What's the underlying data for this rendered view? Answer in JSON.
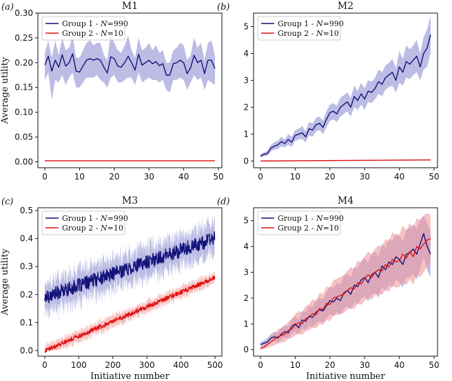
{
  "colors": {
    "group1": "#12127a",
    "group1_band": "#8f8fd3",
    "group2": "#e01010",
    "group2_band": "#f29a9a"
  },
  "chart_data": [
    {
      "id": "a",
      "panel_label": "(a)",
      "type": "line",
      "title": "M1",
      "xlabel": "",
      "ylabel": "Average utility",
      "xlim": [
        -2,
        51
      ],
      "ylim": [
        -0.012,
        0.3
      ],
      "xticks": [
        0,
        10,
        20,
        30,
        40,
        50
      ],
      "xtick_labels": [
        "0",
        "10",
        "20",
        "30",
        "40",
        "50"
      ],
      "yticks": [
        0,
        0.05,
        0.1,
        0.15,
        0.2,
        0.25,
        0.3
      ],
      "ytick_labels": [
        "0.00",
        "0.05",
        "0.10",
        "0.15",
        "0.20",
        "0.25",
        "0.30"
      ],
      "legend": "upper-left",
      "series": [
        {
          "name": "Group 1 - N=990",
          "legend_label": "Group 1 - 𝑁=990",
          "color": "#12127a",
          "band": "#8f8fd3",
          "x": [
            0,
            1,
            2,
            3,
            4,
            5,
            6,
            7,
            8,
            9,
            10,
            11,
            12,
            13,
            14,
            15,
            16,
            17,
            18,
            19,
            20,
            21,
            22,
            23,
            24,
            25,
            26,
            27,
            28,
            29,
            30,
            31,
            32,
            33,
            34,
            35,
            36,
            37,
            38,
            39,
            40,
            41,
            42,
            43,
            44,
            45,
            46,
            47,
            48,
            49
          ],
          "values": [
            0.195,
            0.213,
            0.183,
            0.205,
            0.191,
            0.216,
            0.193,
            0.2,
            0.218,
            0.183,
            0.181,
            0.193,
            0.205,
            0.208,
            0.205,
            0.208,
            0.205,
            0.191,
            0.179,
            0.212,
            0.208,
            0.193,
            0.191,
            0.2,
            0.213,
            0.2,
            0.185,
            0.217,
            0.195,
            0.2,
            0.205,
            0.198,
            0.202,
            0.194,
            0.198,
            0.175,
            0.175,
            0.198,
            0.2,
            0.205,
            0.2,
            0.178,
            0.19,
            0.215,
            0.2,
            0.205,
            0.178,
            0.205,
            0.205,
            0.188
          ],
          "upper": [
            0.22,
            0.245,
            0.21,
            0.245,
            0.215,
            0.25,
            0.225,
            0.23,
            0.255,
            0.21,
            0.21,
            0.225,
            0.24,
            0.245,
            0.235,
            0.24,
            0.24,
            0.215,
            0.205,
            0.26,
            0.24,
            0.225,
            0.22,
            0.235,
            0.255,
            0.225,
            0.21,
            0.25,
            0.225,
            0.23,
            0.24,
            0.225,
            0.235,
            0.22,
            0.225,
            0.2,
            0.2,
            0.225,
            0.23,
            0.24,
            0.235,
            0.205,
            0.215,
            0.25,
            0.23,
            0.24,
            0.205,
            0.24,
            0.245,
            0.215
          ],
          "lower": [
            0.165,
            0.18,
            0.125,
            0.165,
            0.16,
            0.175,
            0.155,
            0.17,
            0.18,
            0.15,
            0.15,
            0.16,
            0.17,
            0.17,
            0.17,
            0.175,
            0.165,
            0.16,
            0.15,
            0.17,
            0.175,
            0.16,
            0.16,
            0.165,
            0.17,
            0.17,
            0.155,
            0.18,
            0.16,
            0.165,
            0.17,
            0.165,
            0.165,
            0.16,
            0.165,
            0.145,
            0.14,
            0.165,
            0.165,
            0.17,
            0.165,
            0.145,
            0.16,
            0.175,
            0.165,
            0.17,
            0.145,
            0.165,
            0.16,
            0.155
          ]
        },
        {
          "name": "Group 2 - N=10",
          "legend_label": "Group 2 - 𝑁=10",
          "color": "#e01010",
          "band": "#f29a9a",
          "x": [
            0,
            49
          ],
          "values": [
            0.002,
            0.002
          ],
          "upper": [
            0.003,
            0.003
          ],
          "lower": [
            0.001,
            0.001
          ]
        }
      ]
    },
    {
      "id": "b",
      "panel_label": "(b)",
      "type": "line",
      "title": "M2",
      "xlabel": "",
      "ylabel": "",
      "xlim": [
        -2,
        51
      ],
      "ylim": [
        -0.25,
        5.5
      ],
      "xticks": [
        0,
        10,
        20,
        30,
        40,
        50
      ],
      "xtick_labels": [
        "0",
        "10",
        "20",
        "30",
        "40",
        "50"
      ],
      "yticks": [
        0,
        1,
        2,
        3,
        4,
        5
      ],
      "ytick_labels": [
        "0",
        "1",
        "2",
        "3",
        "4",
        "5"
      ],
      "legend": "upper-left",
      "series": [
        {
          "name": "Group 1 - N=990",
          "legend_label": "Group 1 - 𝑁=990",
          "color": "#12127a",
          "band": "#8f8fd3",
          "x": [
            0,
            1,
            2,
            3,
            4,
            5,
            6,
            7,
            8,
            9,
            10,
            11,
            12,
            13,
            14,
            15,
            16,
            17,
            18,
            19,
            20,
            21,
            22,
            23,
            24,
            25,
            26,
            27,
            28,
            29,
            30,
            31,
            32,
            33,
            34,
            35,
            36,
            37,
            38,
            39,
            40,
            41,
            42,
            43,
            44,
            45,
            46,
            47,
            48,
            49
          ],
          "values": [
            0.18,
            0.25,
            0.28,
            0.48,
            0.55,
            0.6,
            0.72,
            0.65,
            0.8,
            0.7,
            0.95,
            1.0,
            1.05,
            0.9,
            1.2,
            1.15,
            1.35,
            1.4,
            1.25,
            1.55,
            1.8,
            1.85,
            1.75,
            2.0,
            2.1,
            2.2,
            2.0,
            2.4,
            2.25,
            2.5,
            2.3,
            2.6,
            2.55,
            2.7,
            2.95,
            2.85,
            3.1,
            3.2,
            3.3,
            3.0,
            3.5,
            3.3,
            3.7,
            3.6,
            3.75,
            3.9,
            3.5,
            4.0,
            4.2,
            4.7
          ],
          "upper": [
            0.25,
            0.32,
            0.38,
            0.6,
            0.7,
            0.75,
            0.9,
            0.8,
            1.0,
            0.9,
            1.15,
            1.2,
            1.3,
            1.1,
            1.45,
            1.4,
            1.6,
            1.65,
            1.5,
            1.85,
            2.1,
            2.15,
            2.05,
            2.35,
            2.45,
            2.55,
            2.35,
            2.8,
            2.6,
            2.9,
            2.7,
            3.0,
            2.95,
            3.1,
            3.4,
            3.3,
            3.55,
            3.65,
            3.8,
            3.45,
            4.1,
            3.8,
            4.3,
            4.15,
            4.3,
            4.5,
            4.0,
            4.6,
            4.9,
            5.4
          ],
          "lower": [
            0.12,
            0.18,
            0.2,
            0.36,
            0.42,
            0.45,
            0.55,
            0.5,
            0.6,
            0.52,
            0.75,
            0.8,
            0.82,
            0.7,
            0.95,
            0.9,
            1.1,
            1.15,
            1.0,
            1.25,
            1.5,
            1.55,
            1.45,
            1.65,
            1.75,
            1.85,
            1.65,
            2.0,
            1.9,
            2.1,
            1.9,
            2.2,
            2.15,
            2.3,
            2.5,
            2.4,
            2.65,
            2.75,
            2.8,
            2.55,
            2.9,
            2.8,
            3.1,
            3.05,
            3.2,
            3.3,
            3.0,
            3.4,
            3.5,
            4.0
          ]
        },
        {
          "name": "Group 2 - N=10",
          "legend_label": "Group 2 - 𝑁=10",
          "color": "#e01010",
          "band": "#f29a9a",
          "x": [
            0,
            49
          ],
          "values": [
            0.0,
            0.04
          ],
          "upper": [
            0.01,
            0.06
          ],
          "lower": [
            0.0,
            0.02
          ]
        }
      ]
    },
    {
      "id": "c",
      "panel_label": "(c)",
      "type": "line",
      "title": "M3",
      "xlabel": "Initiative number",
      "ylabel": "Average utility",
      "xlim": [
        -20,
        520
      ],
      "ylim": [
        -0.02,
        0.51
      ],
      "xticks": [
        0,
        100,
        200,
        300,
        400,
        500
      ],
      "xtick_labels": [
        "0",
        "100",
        "200",
        "300",
        "400",
        "500"
      ],
      "yticks": [
        0,
        0.1,
        0.2,
        0.3,
        0.4,
        0.5
      ],
      "ytick_labels": [
        "0.0",
        "0.1",
        "0.2",
        "0.3",
        "0.4",
        "0.5"
      ],
      "legend": "upper-left",
      "series": [
        {
          "name": "Group 1 - N=990",
          "legend_label": "Group 1 - 𝑁=990",
          "color": "#12127a",
          "band": "#8f8fd3",
          "noisy": true,
          "n": 500,
          "start": 0.19,
          "end": 0.4,
          "noise": 0.025,
          "band_width": 0.055
        },
        {
          "name": "Group 2 - N=10",
          "legend_label": "Group 2 - 𝑁=10",
          "color": "#e01010",
          "band": "#f29a9a",
          "noisy": true,
          "n": 500,
          "start": 0.0,
          "end": 0.26,
          "noise": 0.008,
          "band_width": 0.02
        }
      ]
    },
    {
      "id": "d",
      "panel_label": "(d)",
      "type": "line",
      "title": "M4",
      "xlabel": "Initiative number",
      "ylabel": "",
      "xlim": [
        -2,
        51
      ],
      "ylim": [
        -0.25,
        5.5
      ],
      "xticks": [
        0,
        10,
        20,
        30,
        40,
        50
      ],
      "xtick_labels": [
        "0",
        "10",
        "20",
        "30",
        "40",
        "50"
      ],
      "yticks": [
        0,
        1,
        2,
        3,
        4,
        5
      ],
      "ytick_labels": [
        "0",
        "1",
        "2",
        "3",
        "4",
        "5"
      ],
      "legend": "upper-left",
      "series": [
        {
          "name": "Group 1 - N=990",
          "legend_label": "Group 1 - 𝑁=990",
          "color": "#12127a",
          "band": "#8f8fd3",
          "x": [
            0,
            1,
            2,
            3,
            4,
            5,
            6,
            7,
            8,
            9,
            10,
            11,
            12,
            13,
            14,
            15,
            16,
            17,
            18,
            19,
            20,
            21,
            22,
            23,
            24,
            25,
            26,
            27,
            28,
            29,
            30,
            31,
            32,
            33,
            34,
            35,
            36,
            37,
            38,
            39,
            40,
            41,
            42,
            43,
            44,
            45,
            46,
            47,
            48,
            49
          ],
          "values": [
            0.2,
            0.25,
            0.3,
            0.45,
            0.5,
            0.45,
            0.6,
            0.7,
            0.65,
            0.9,
            1.0,
            0.85,
            1.15,
            1.1,
            1.3,
            1.25,
            1.45,
            1.55,
            1.5,
            1.7,
            1.9,
            1.85,
            2.0,
            1.9,
            2.2,
            2.3,
            2.15,
            2.5,
            2.45,
            2.7,
            2.8,
            2.6,
            2.9,
            3.0,
            2.8,
            3.25,
            3.1,
            3.4,
            3.3,
            3.6,
            3.5,
            3.3,
            3.7,
            3.75,
            3.9,
            3.7,
            4.1,
            4.5,
            4.0,
            3.7
          ],
          "upper": [
            0.3,
            0.35,
            0.45,
            0.6,
            0.7,
            0.65,
            0.85,
            0.95,
            0.9,
            1.2,
            1.3,
            1.15,
            1.5,
            1.45,
            1.7,
            1.65,
            1.9,
            2.0,
            1.95,
            2.2,
            2.45,
            2.4,
            2.6,
            2.5,
            2.85,
            2.95,
            2.8,
            3.2,
            3.15,
            3.45,
            3.55,
            3.35,
            3.7,
            3.8,
            3.6,
            4.1,
            3.95,
            4.3,
            4.2,
            4.5,
            4.4,
            4.2,
            4.65,
            4.7,
            4.85,
            4.7,
            5.05,
            5.2,
            4.9,
            4.6
          ],
          "lower": [
            0.1,
            0.15,
            0.18,
            0.3,
            0.32,
            0.28,
            0.4,
            0.48,
            0.42,
            0.62,
            0.7,
            0.58,
            0.82,
            0.78,
            0.92,
            0.88,
            1.02,
            1.1,
            1.05,
            1.22,
            1.38,
            1.32,
            1.45,
            1.35,
            1.6,
            1.68,
            1.55,
            1.82,
            1.78,
            1.98,
            2.08,
            1.88,
            2.12,
            2.2,
            2.02,
            2.42,
            2.28,
            2.52,
            2.42,
            2.72,
            2.62,
            2.42,
            2.78,
            2.82,
            2.95,
            2.72,
            3.15,
            3.6,
            3.1,
            2.8
          ]
        },
        {
          "name": "Group 2 - N=10",
          "legend_label": "Group 2 - 𝑁=10",
          "color": "#e01010",
          "band": "#f29a9a",
          "x": [
            0,
            1,
            2,
            3,
            4,
            5,
            6,
            7,
            8,
            9,
            10,
            11,
            12,
            13,
            14,
            15,
            16,
            17,
            18,
            19,
            20,
            21,
            22,
            23,
            24,
            25,
            26,
            27,
            28,
            29,
            30,
            31,
            32,
            33,
            34,
            35,
            36,
            37,
            38,
            39,
            40,
            41,
            42,
            43,
            44,
            45,
            46,
            47,
            48,
            49
          ],
          "values": [
            0.05,
            0.1,
            0.2,
            0.3,
            0.4,
            0.5,
            0.55,
            0.6,
            0.75,
            0.8,
            0.95,
            1.05,
            1.0,
            1.2,
            1.25,
            1.4,
            1.35,
            1.6,
            1.55,
            1.8,
            1.75,
            2.0,
            2.05,
            2.1,
            2.15,
            2.3,
            2.4,
            2.35,
            2.6,
            2.55,
            2.75,
            2.9,
            2.8,
            3.0,
            3.1,
            3.05,
            3.3,
            3.2,
            3.5,
            3.4,
            3.45,
            3.7,
            3.55,
            3.8,
            3.6,
            4.0,
            3.9,
            4.1,
            4.25,
            4.3
          ],
          "upper": [
            0.12,
            0.2,
            0.35,
            0.5,
            0.65,
            0.78,
            0.85,
            0.92,
            1.1,
            1.18,
            1.38,
            1.5,
            1.45,
            1.7,
            1.75,
            1.95,
            1.9,
            2.2,
            2.15,
            2.45,
            2.4,
            2.7,
            2.75,
            2.82,
            2.9,
            3.05,
            3.2,
            3.12,
            3.45,
            3.38,
            3.62,
            3.8,
            3.7,
            3.92,
            4.05,
            4.0,
            4.3,
            4.18,
            4.55,
            4.42,
            4.48,
            4.8,
            4.62,
            4.9,
            4.7,
            5.1,
            5.0,
            5.2,
            5.3,
            5.2
          ],
          "lower": [
            0.0,
            0.02,
            0.08,
            0.12,
            0.18,
            0.24,
            0.28,
            0.3,
            0.42,
            0.45,
            0.55,
            0.62,
            0.58,
            0.72,
            0.76,
            0.86,
            0.82,
            1.0,
            0.96,
            1.15,
            1.1,
            1.3,
            1.34,
            1.38,
            1.42,
            1.55,
            1.62,
            1.58,
            1.78,
            1.74,
            1.9,
            2.02,
            1.94,
            2.1,
            2.18,
            2.12,
            2.32,
            2.24,
            2.48,
            2.4,
            2.44,
            2.62,
            2.5,
            2.72,
            2.52,
            2.9,
            2.8,
            3.0,
            3.2,
            3.4
          ]
        }
      ]
    }
  ]
}
